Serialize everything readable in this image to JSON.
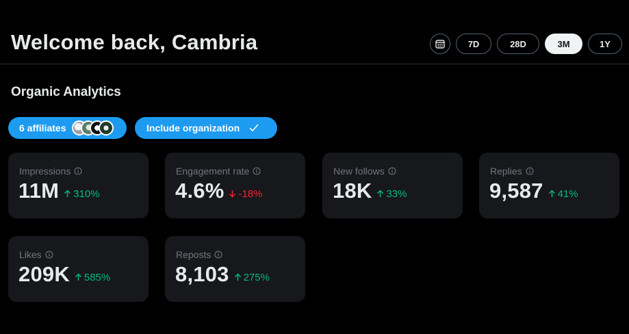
{
  "header": {
    "welcome": "Welcome back, Cambria",
    "ranges": [
      {
        "label": "7D",
        "active": false
      },
      {
        "label": "28D",
        "active": false
      },
      {
        "label": "3M",
        "active": true
      },
      {
        "label": "1Y",
        "active": false
      }
    ],
    "calendar_icon": "calendar-icon"
  },
  "section": {
    "title": "Organic Analytics"
  },
  "filters": {
    "affiliates_label": "6 affiliates",
    "affiliate_avatar_count": 4,
    "org_label": "Include organization",
    "org_checked": true
  },
  "colors": {
    "accent": "#1d9bf0",
    "up": "#00ba7c",
    "down": "#f4212e",
    "card_bg": "#16181c"
  },
  "metrics": [
    {
      "label": "Impressions",
      "value": "11M",
      "delta": "310%",
      "direction": "up"
    },
    {
      "label": "Engagement rate",
      "value": "4.6%",
      "delta": "-18%",
      "direction": "down"
    },
    {
      "label": "New follows",
      "value": "18K",
      "delta": "33%",
      "direction": "up"
    },
    {
      "label": "Replies",
      "value": "9,587",
      "delta": "41%",
      "direction": "up"
    },
    {
      "label": "Likes",
      "value": "209K",
      "delta": "585%",
      "direction": "up"
    },
    {
      "label": "Reposts",
      "value": "8,103",
      "delta": "275%",
      "direction": "up"
    }
  ]
}
